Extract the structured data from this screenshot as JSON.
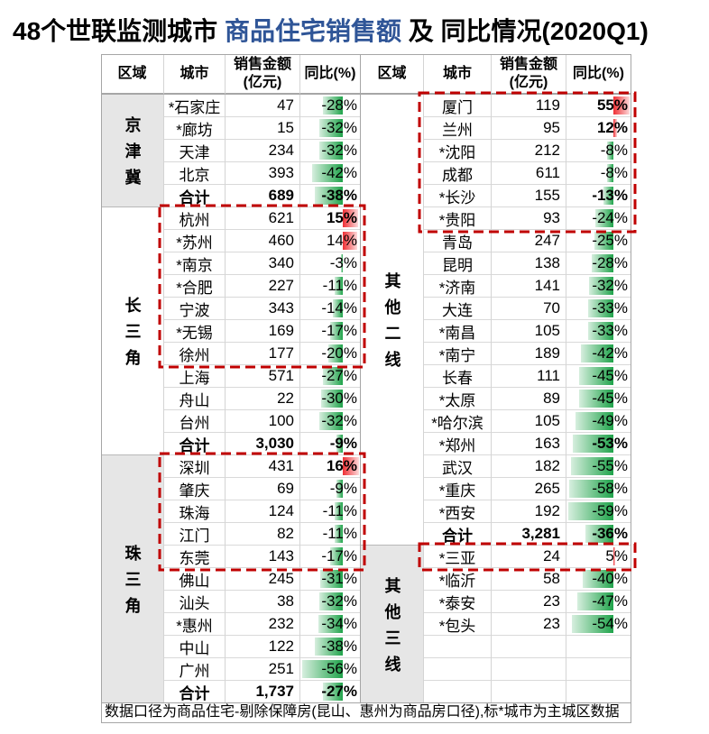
{
  "title": {
    "prefix": "48个世联监测城市",
    "highlight": "商品住宅销售额",
    "suffix": "及 同比情况(2020Q1)"
  },
  "colors": {
    "title_highlight": "#2f5597",
    "negative_bar": "#1fa34a",
    "positive_bar": "#ef2f34",
    "highlight_box": "#c00000",
    "region_shade": "#e6e6e6"
  },
  "header": {
    "region": "区域",
    "city": "城市",
    "sales": "销售金额",
    "sales_unit": "(亿元)",
    "yoy": "同比(%)"
  },
  "panels": [
    {
      "id": "left",
      "regions": [
        {
          "name": "京津冀",
          "shaded": true,
          "rows": [
            {
              "city": "*石家庄",
              "sales": "47",
              "yoy": "-28%"
            },
            {
              "city": "*廊坊",
              "sales": "15",
              "yoy": "-32%"
            },
            {
              "city": "天津",
              "sales": "234",
              "yoy": "-32%"
            },
            {
              "city": "北京",
              "sales": "393",
              "yoy": "-42%"
            },
            {
              "city": "合计",
              "sales": "689",
              "yoy": "-38%",
              "total": true
            }
          ]
        },
        {
          "name": "长三角",
          "shaded": false,
          "rows": [
            {
              "city": "杭州",
              "sales": "621",
              "yoy": "15%",
              "bold": true
            },
            {
              "city": "*苏州",
              "sales": "460",
              "yoy": "14%"
            },
            {
              "city": "*南京",
              "sales": "340",
              "yoy": "-3%"
            },
            {
              "city": "*合肥",
              "sales": "227",
              "yoy": "-11%"
            },
            {
              "city": "宁波",
              "sales": "343",
              "yoy": "-14%"
            },
            {
              "city": "*无锡",
              "sales": "169",
              "yoy": "-17%"
            },
            {
              "city": "徐州",
              "sales": "177",
              "yoy": "-20%"
            },
            {
              "city": "上海",
              "sales": "571",
              "yoy": "-27%"
            },
            {
              "city": "舟山",
              "sales": "22",
              "yoy": "-30%"
            },
            {
              "city": "台州",
              "sales": "100",
              "yoy": "-32%"
            },
            {
              "city": "合计",
              "sales": "3,030",
              "yoy": "-9%",
              "total": true
            }
          ]
        },
        {
          "name": "珠三角",
          "shaded": true,
          "rows": [
            {
              "city": "深圳",
              "sales": "431",
              "yoy": "16%",
              "bold": true
            },
            {
              "city": "肇庆",
              "sales": "69",
              "yoy": "-9%"
            },
            {
              "city": "珠海",
              "sales": "124",
              "yoy": "-11%"
            },
            {
              "city": "江门",
              "sales": "82",
              "yoy": "-11%"
            },
            {
              "city": "东莞",
              "sales": "143",
              "yoy": "-17%"
            },
            {
              "city": "佛山",
              "sales": "245",
              "yoy": "-31%"
            },
            {
              "city": "汕头",
              "sales": "38",
              "yoy": "-32%"
            },
            {
              "city": "*惠州",
              "sales": "232",
              "yoy": "-34%"
            },
            {
              "city": "中山",
              "sales": "122",
              "yoy": "-38%"
            },
            {
              "city": "广州",
              "sales": "251",
              "yoy": "-56%"
            },
            {
              "city": "合计",
              "sales": "1,737",
              "yoy": "-27%",
              "total": true
            }
          ]
        }
      ]
    },
    {
      "id": "right",
      "regions": [
        {
          "name": "其他二线",
          "shaded": false,
          "rows": [
            {
              "city": "厦门",
              "sales": "119",
              "yoy": "55%",
              "bold": true
            },
            {
              "city": "兰州",
              "sales": "95",
              "yoy": "12%",
              "bold": true
            },
            {
              "city": "*沈阳",
              "sales": "212",
              "yoy": "-8%"
            },
            {
              "city": "成都",
              "sales": "611",
              "yoy": "-8%"
            },
            {
              "city": "*长沙",
              "sales": "155",
              "yoy": "-13%",
              "bold": true
            },
            {
              "city": "*贵阳",
              "sales": "93",
              "yoy": "-24%"
            },
            {
              "city": "青岛",
              "sales": "247",
              "yoy": "-25%"
            },
            {
              "city": "昆明",
              "sales": "138",
              "yoy": "-28%"
            },
            {
              "city": "*济南",
              "sales": "141",
              "yoy": "-32%"
            },
            {
              "city": "大连",
              "sales": "70",
              "yoy": "-33%"
            },
            {
              "city": "*南昌",
              "sales": "105",
              "yoy": "-33%"
            },
            {
              "city": "*南宁",
              "sales": "189",
              "yoy": "-42%"
            },
            {
              "city": "长春",
              "sales": "111",
              "yoy": "-45%"
            },
            {
              "city": "*太原",
              "sales": "89",
              "yoy": "-45%"
            },
            {
              "city": "*哈尔滨",
              "sales": "105",
              "yoy": "-49%"
            },
            {
              "city": "*郑州",
              "sales": "163",
              "yoy": "-53%",
              "bold": true
            },
            {
              "city": "武汉",
              "sales": "182",
              "yoy": "-55%"
            },
            {
              "city": "*重庆",
              "sales": "265",
              "yoy": "-58%"
            },
            {
              "city": "*西安",
              "sales": "192",
              "yoy": "-59%"
            },
            {
              "city": "合计",
              "sales": "3,281",
              "yoy": "-36%",
              "total": true
            }
          ]
        },
        {
          "name": "其他三线",
          "shaded": true,
          "rows": [
            {
              "city": "*三亚",
              "sales": "24",
              "yoy": "5%"
            },
            {
              "city": "*临沂",
              "sales": "58",
              "yoy": "-40%"
            },
            {
              "city": "*泰安",
              "sales": "23",
              "yoy": "-47%"
            },
            {
              "city": "*包头",
              "sales": "23",
              "yoy": "-54%"
            }
          ]
        }
      ]
    }
  ],
  "highlight_boxes": [
    {
      "panel": "left",
      "from": "杭州",
      "to": "徐州"
    },
    {
      "panel": "left",
      "from": "深圳",
      "to": "东莞"
    },
    {
      "panel": "right",
      "from": "厦门",
      "to": "*贵阳"
    },
    {
      "panel": "right",
      "from": "*三亚",
      "to": "*三亚"
    }
  ],
  "footnote": "数据口径为商品住宅-剔除保障房(昆山、惠州为商品房口径),标*城市为主城区数据"
}
